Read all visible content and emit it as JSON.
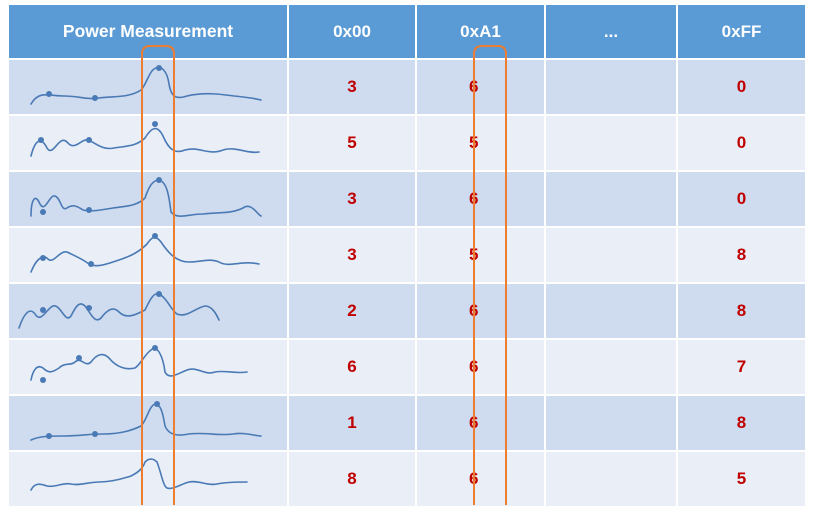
{
  "table": {
    "headers": [
      "Power Measurement",
      "0x00",
      "0xA1",
      "...",
      "0xFF"
    ],
    "rows": [
      {
        "v00": "3",
        "vA1": "6",
        "vFF": "0"
      },
      {
        "v00": "5",
        "vA1": "5",
        "vFF": "0"
      },
      {
        "v00": "3",
        "vA1": "6",
        "vFF": "0"
      },
      {
        "v00": "3",
        "vA1": "5",
        "vFF": "8"
      },
      {
        "v00": "2",
        "vA1": "6",
        "vFF": "8"
      },
      {
        "v00": "6",
        "vA1": "6",
        "vFF": "7"
      },
      {
        "v00": "1",
        "vA1": "6",
        "vFF": "8"
      },
      {
        "v00": "8",
        "vA1": "6",
        "vFF": "5"
      }
    ]
  },
  "colors": {
    "header_bg": "#5b9bd5",
    "row_dark": "#cfdbee",
    "row_light": "#e9eef7",
    "value_text": "#c00000",
    "trace_stroke": "#4a7ab5",
    "highlight_box": "#ed7d31"
  }
}
